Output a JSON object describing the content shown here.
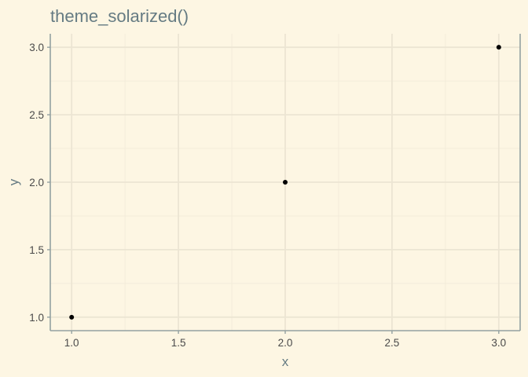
{
  "chart_data": {
    "type": "scatter",
    "title": "theme_solarized()",
    "xlabel": "x",
    "ylabel": "y",
    "xlim": [
      0.9,
      3.1
    ],
    "ylim": [
      0.9,
      3.1
    ],
    "x_ticks": [
      1.0,
      1.5,
      2.0,
      2.5,
      3.0
    ],
    "x_tick_labels": [
      "1.0",
      "1.5",
      "2.0",
      "2.5",
      "3.0"
    ],
    "x_minor_ticks": [
      1.25,
      1.75,
      2.25,
      2.75
    ],
    "y_ticks": [
      1.0,
      1.5,
      2.0,
      2.5,
      3.0
    ],
    "y_tick_labels": [
      "1.0",
      "1.5",
      "2.0",
      "2.5",
      "3.0"
    ],
    "y_minor_ticks": [
      1.25,
      1.75,
      2.25,
      2.75
    ],
    "grid": true,
    "series": [
      {
        "x": [
          1.0,
          2.0,
          3.0
        ],
        "y": [
          1.0,
          2.0,
          3.0
        ],
        "color": "#000000"
      }
    ],
    "colors": {
      "background": "#fdf6e3",
      "grid_major": "#ece5d3",
      "grid_minor": "#f3ecda",
      "axis_line": "#93a1a1",
      "title": "#657b83",
      "tick_label": "#4a4a4a"
    }
  }
}
